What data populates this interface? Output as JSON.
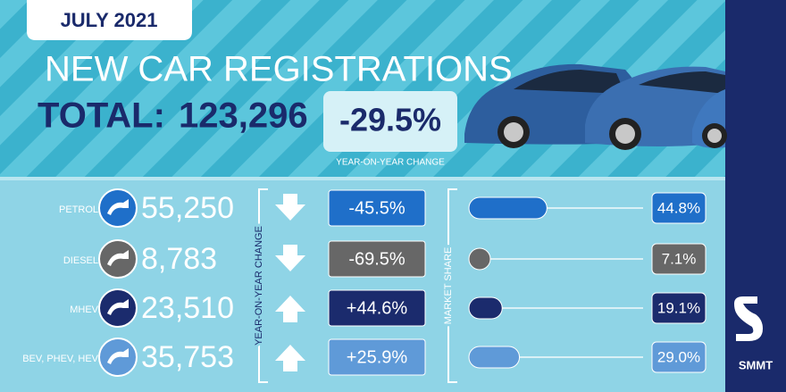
{
  "header": {
    "date": "JULY 2021",
    "title": "NEW CAR REGISTRATIONS",
    "total_label": "TOTAL:",
    "total": "123,296",
    "change": "-29.5%",
    "change_caption": "YEAR-ON-YEAR CHANGE"
  },
  "fuel_types": {
    "change_axis_label": "YEAR-ON-YEAR CHANGE",
    "share_axis_label": "MARKET SHARE",
    "rows": [
      {
        "name": "PETROL",
        "registrations": "55,250",
        "change": "-45.5%",
        "direction": "down",
        "share": 44.8,
        "share_label": "44.8%",
        "color": "#1f6fc9"
      },
      {
        "name": "DIESEL",
        "registrations": "8,783",
        "change": "-69.5%",
        "direction": "down",
        "share": 7.1,
        "share_label": "7.1%",
        "color": "#676767"
      },
      {
        "name": "MHEV",
        "registrations": "23,510",
        "change": "+44.6%",
        "direction": "up",
        "share": 19.1,
        "share_label": "19.1%",
        "color": "#1b2b6d"
      },
      {
        "name": "BEV, PHEV, HEV",
        "registrations": "35,753",
        "change": "+25.9%",
        "direction": "up",
        "share": 29.0,
        "share_label": "29.0%",
        "color": "#5f9ad8"
      }
    ]
  },
  "logo": "SMMT"
}
